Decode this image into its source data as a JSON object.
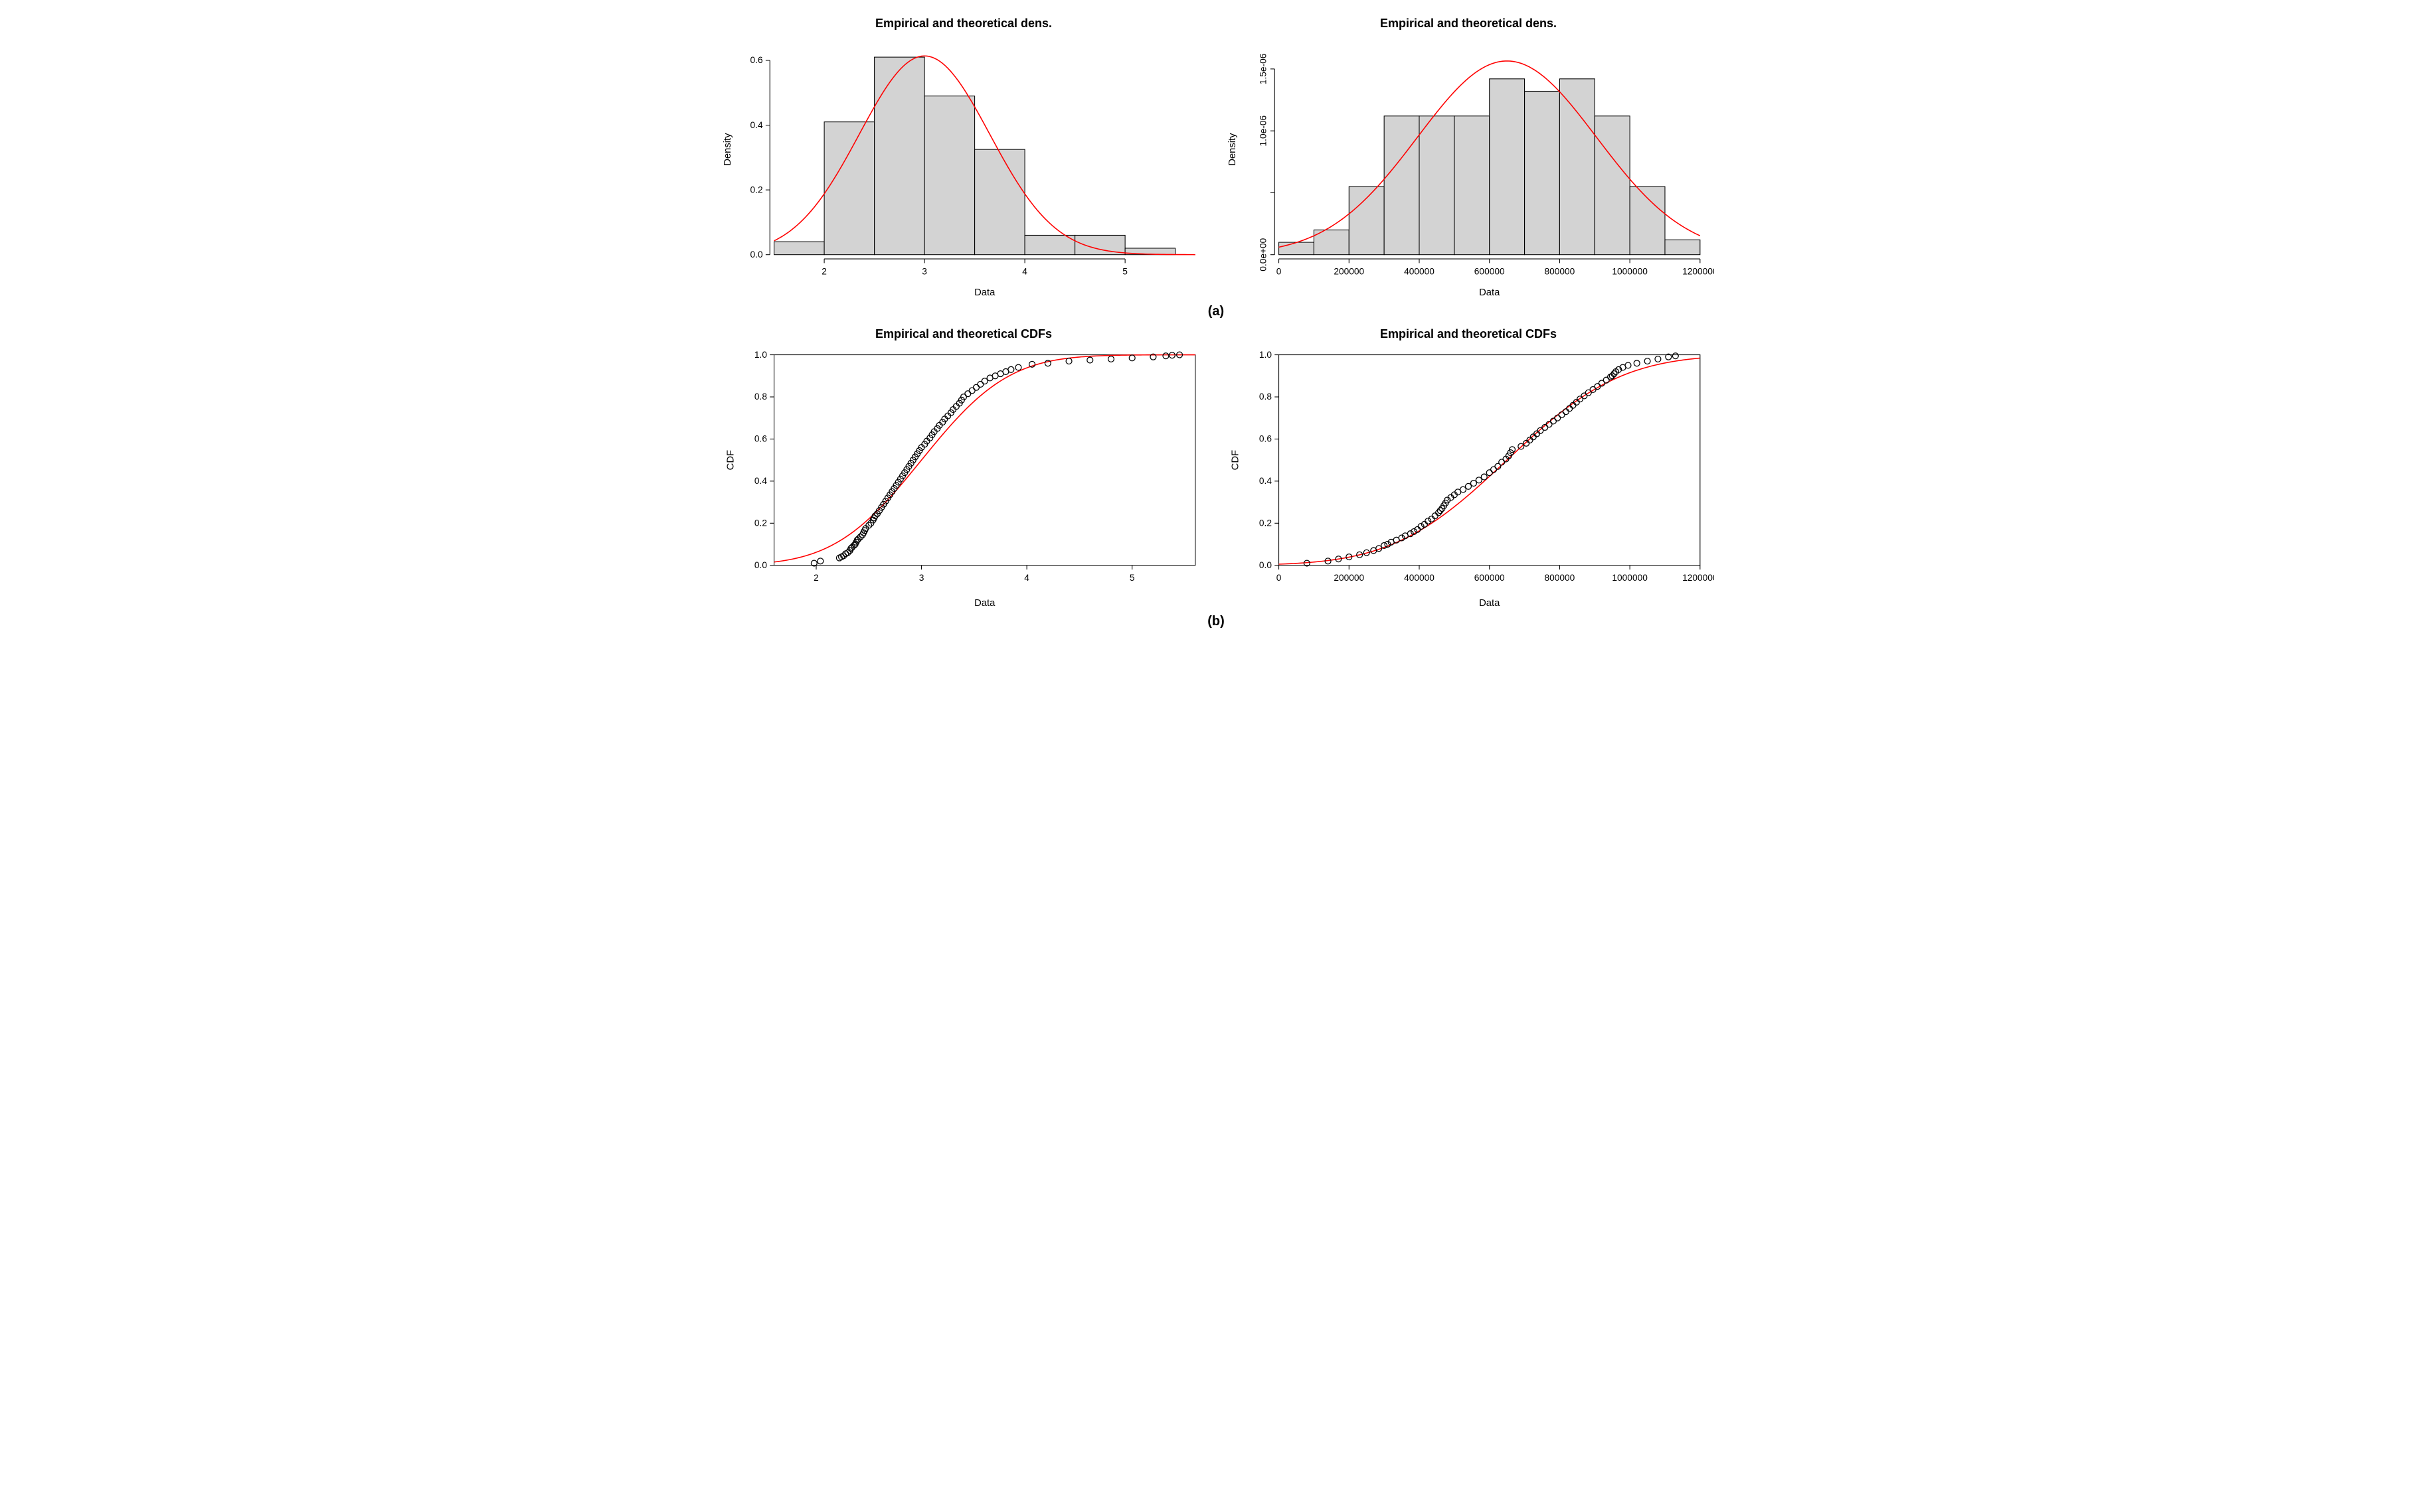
{
  "subplot_labels": {
    "a": "(a)",
    "b": "(b)"
  },
  "hist_left": {
    "type": "histogram",
    "title": "Empirical and theoretical dens.",
    "xlabel": "Data",
    "ylabel": "Density",
    "xlim": [
      1.5,
      5.7
    ],
    "ylim": [
      0,
      0.65
    ],
    "xticks": [
      2,
      3,
      4,
      5
    ],
    "yticks": [
      0.0,
      0.2,
      0.4,
      0.6
    ],
    "ytick_labels": [
      "0.0",
      "0.2",
      "0.4",
      "0.6"
    ],
    "bin_width": 0.5,
    "bins": [
      {
        "x": 1.5,
        "h": 0.04
      },
      {
        "x": 2.0,
        "h": 0.41
      },
      {
        "x": 2.5,
        "h": 0.61
      },
      {
        "x": 3.0,
        "h": 0.49
      },
      {
        "x": 3.5,
        "h": 0.325
      },
      {
        "x": 4.0,
        "h": 0.06
      },
      {
        "x": 4.5,
        "h": 0.06
      },
      {
        "x": 5.0,
        "h": 0.02
      }
    ],
    "curve": {
      "mu": 3.0,
      "sigma": 0.65,
      "scale": 1.0
    },
    "bar_fill": "#d3d3d3",
    "bar_stroke": "#000000",
    "line_color": "#ff0000",
    "background_color": "#ffffff",
    "title_fontsize": 18,
    "label_fontsize": 14
  },
  "hist_right": {
    "type": "histogram",
    "title": "Empirical and theoretical dens.",
    "xlabel": "Data",
    "ylabel": "Density",
    "xlim": [
      0,
      1200000
    ],
    "ylim": [
      0,
      1.7e-06
    ],
    "xticks": [
      0,
      200000,
      400000,
      600000,
      800000,
      1000000,
      1200000
    ],
    "yticks": [
      0,
      5e-07,
      1e-06,
      1.5e-06
    ],
    "ytick_labels": [
      "0.0e+00",
      "",
      "1.0e-06",
      "1.5e-06"
    ],
    "bin_width": 100000,
    "bins": [
      {
        "x": 0,
        "h": 1e-07
      },
      {
        "x": 100000,
        "h": 2e-07
      },
      {
        "x": 200000,
        "h": 5.5e-07
      },
      {
        "x": 300000,
        "h": 1.12e-06
      },
      {
        "x": 400000,
        "h": 1.12e-06
      },
      {
        "x": 500000,
        "h": 1.12e-06
      },
      {
        "x": 600000,
        "h": 1.42e-06
      },
      {
        "x": 700000,
        "h": 1.32e-06
      },
      {
        "x": 800000,
        "h": 1.42e-06
      },
      {
        "x": 900000,
        "h": 1.12e-06
      },
      {
        "x": 1000000,
        "h": 5.5e-07
      },
      {
        "x": 1100000,
        "h": 1.2e-07
      }
    ],
    "curve": {
      "mu": 650000,
      "sigma": 255000,
      "scale": 1.0
    },
    "bar_fill": "#d3d3d3",
    "bar_stroke": "#000000",
    "line_color": "#ff0000",
    "background_color": "#ffffff",
    "title_fontsize": 18,
    "label_fontsize": 14
  },
  "cdf_left": {
    "type": "cdf",
    "title": "Empirical and theoretical CDFs",
    "xlabel": "Data",
    "ylabel": "CDF",
    "xlim": [
      1.6,
      5.6
    ],
    "ylim": [
      0,
      1.0
    ],
    "xticks": [
      2,
      3,
      4,
      5
    ],
    "yticks": [
      0.0,
      0.2,
      0.4,
      0.6,
      0.8,
      1.0
    ],
    "ytick_labels": [
      "0.0",
      "0.2",
      "0.4",
      "0.6",
      "0.8",
      "1.0"
    ],
    "line_color": "#ff0000",
    "point_stroke": "#000000",
    "marker": "circle",
    "marker_size": 4.2,
    "curve": {
      "mu": 3.0,
      "sigma": 0.65
    },
    "points": [
      [
        1.98,
        0.01
      ],
      [
        2.04,
        0.02
      ],
      [
        2.22,
        0.035
      ],
      [
        2.24,
        0.04
      ],
      [
        2.26,
        0.045
      ],
      [
        2.28,
        0.055
      ],
      [
        2.3,
        0.06
      ],
      [
        2.32,
        0.07
      ],
      [
        2.33,
        0.08
      ],
      [
        2.34,
        0.085
      ],
      [
        2.36,
        0.095
      ],
      [
        2.37,
        0.1
      ],
      [
        2.38,
        0.11
      ],
      [
        2.39,
        0.12
      ],
      [
        2.4,
        0.125
      ],
      [
        2.42,
        0.135
      ],
      [
        2.44,
        0.145
      ],
      [
        2.45,
        0.155
      ],
      [
        2.46,
        0.165
      ],
      [
        2.47,
        0.175
      ],
      [
        2.5,
        0.19
      ],
      [
        2.52,
        0.2
      ],
      [
        2.54,
        0.215
      ],
      [
        2.55,
        0.225
      ],
      [
        2.56,
        0.235
      ],
      [
        2.58,
        0.245
      ],
      [
        2.6,
        0.26
      ],
      [
        2.62,
        0.275
      ],
      [
        2.64,
        0.29
      ],
      [
        2.66,
        0.305
      ],
      [
        2.68,
        0.32
      ],
      [
        2.7,
        0.335
      ],
      [
        2.72,
        0.35
      ],
      [
        2.74,
        0.365
      ],
      [
        2.76,
        0.38
      ],
      [
        2.78,
        0.395
      ],
      [
        2.8,
        0.41
      ],
      [
        2.82,
        0.425
      ],
      [
        2.84,
        0.44
      ],
      [
        2.86,
        0.455
      ],
      [
        2.88,
        0.47
      ],
      [
        2.9,
        0.485
      ],
      [
        2.92,
        0.5
      ],
      [
        2.94,
        0.515
      ],
      [
        2.96,
        0.53
      ],
      [
        2.98,
        0.545
      ],
      [
        3.0,
        0.56
      ],
      [
        3.03,
        0.575
      ],
      [
        3.05,
        0.59
      ],
      [
        3.08,
        0.605
      ],
      [
        3.1,
        0.62
      ],
      [
        3.12,
        0.635
      ],
      [
        3.15,
        0.65
      ],
      [
        3.17,
        0.665
      ],
      [
        3.2,
        0.68
      ],
      [
        3.22,
        0.695
      ],
      [
        3.25,
        0.71
      ],
      [
        3.28,
        0.725
      ],
      [
        3.3,
        0.74
      ],
      [
        3.33,
        0.755
      ],
      [
        3.36,
        0.77
      ],
      [
        3.38,
        0.785
      ],
      [
        3.4,
        0.8
      ],
      [
        3.44,
        0.815
      ],
      [
        3.48,
        0.83
      ],
      [
        3.52,
        0.845
      ],
      [
        3.56,
        0.86
      ],
      [
        3.6,
        0.875
      ],
      [
        3.65,
        0.89
      ],
      [
        3.7,
        0.9
      ],
      [
        3.75,
        0.91
      ],
      [
        3.8,
        0.92
      ],
      [
        3.85,
        0.93
      ],
      [
        3.92,
        0.94
      ],
      [
        4.05,
        0.955
      ],
      [
        4.2,
        0.96
      ],
      [
        4.4,
        0.97
      ],
      [
        4.6,
        0.975
      ],
      [
        4.8,
        0.98
      ],
      [
        5.0,
        0.985
      ],
      [
        5.2,
        0.99
      ],
      [
        5.32,
        0.995
      ],
      [
        5.38,
        0.998
      ],
      [
        5.45,
        1.0
      ]
    ],
    "background_color": "#ffffff",
    "title_fontsize": 18,
    "label_fontsize": 14
  },
  "cdf_right": {
    "type": "cdf",
    "title": "Empirical and theoretical CDFs",
    "xlabel": "Data",
    "ylabel": "CDF",
    "xlim": [
      0,
      1200000
    ],
    "ylim": [
      0,
      1.0
    ],
    "xticks": [
      0,
      200000,
      400000,
      600000,
      800000,
      1000000,
      1200000
    ],
    "yticks": [
      0.0,
      0.2,
      0.4,
      0.6,
      0.8,
      1.0
    ],
    "ytick_labels": [
      "0.0",
      "0.2",
      "0.4",
      "0.6",
      "0.8",
      "1.0"
    ],
    "line_color": "#ff0000",
    "point_stroke": "#000000",
    "marker": "circle",
    "marker_size": 4.2,
    "curve": {
      "mu": 650000,
      "sigma": 255000
    },
    "points": [
      [
        80000,
        0.01
      ],
      [
        140000,
        0.02
      ],
      [
        170000,
        0.03
      ],
      [
        200000,
        0.04
      ],
      [
        230000,
        0.05
      ],
      [
        250000,
        0.06
      ],
      [
        270000,
        0.07
      ],
      [
        285000,
        0.08
      ],
      [
        300000,
        0.094
      ],
      [
        310000,
        0.1
      ],
      [
        320000,
        0.11
      ],
      [
        335000,
        0.12
      ],
      [
        350000,
        0.13
      ],
      [
        360000,
        0.14
      ],
      [
        375000,
        0.15
      ],
      [
        385000,
        0.16
      ],
      [
        395000,
        0.17
      ],
      [
        405000,
        0.185
      ],
      [
        415000,
        0.195
      ],
      [
        425000,
        0.21
      ],
      [
        435000,
        0.22
      ],
      [
        445000,
        0.235
      ],
      [
        455000,
        0.25
      ],
      [
        460000,
        0.26
      ],
      [
        465000,
        0.27
      ],
      [
        470000,
        0.283
      ],
      [
        475000,
        0.296
      ],
      [
        480000,
        0.31
      ],
      [
        490000,
        0.322
      ],
      [
        500000,
        0.335
      ],
      [
        510000,
        0.348
      ],
      [
        525000,
        0.36
      ],
      [
        540000,
        0.375
      ],
      [
        555000,
        0.39
      ],
      [
        570000,
        0.405
      ],
      [
        585000,
        0.42
      ],
      [
        600000,
        0.44
      ],
      [
        612000,
        0.455
      ],
      [
        624000,
        0.47
      ],
      [
        635000,
        0.49
      ],
      [
        647000,
        0.505
      ],
      [
        655000,
        0.52
      ],
      [
        660000,
        0.535
      ],
      [
        665000,
        0.55
      ],
      [
        690000,
        0.565
      ],
      [
        705000,
        0.58
      ],
      [
        715000,
        0.595
      ],
      [
        725000,
        0.61
      ],
      [
        735000,
        0.625
      ],
      [
        745000,
        0.64
      ],
      [
        758000,
        0.655
      ],
      [
        770000,
        0.67
      ],
      [
        782000,
        0.685
      ],
      [
        794000,
        0.7
      ],
      [
        806000,
        0.715
      ],
      [
        818000,
        0.73
      ],
      [
        828000,
        0.745
      ],
      [
        838000,
        0.76
      ],
      [
        848000,
        0.775
      ],
      [
        858000,
        0.79
      ],
      [
        870000,
        0.805
      ],
      [
        882000,
        0.82
      ],
      [
        895000,
        0.835
      ],
      [
        908000,
        0.85
      ],
      [
        920000,
        0.865
      ],
      [
        933000,
        0.88
      ],
      [
        945000,
        0.895
      ],
      [
        950000,
        0.9
      ],
      [
        955000,
        0.91
      ],
      [
        960000,
        0.92
      ],
      [
        968000,
        0.93
      ],
      [
        980000,
        0.94
      ],
      [
        995000,
        0.95
      ],
      [
        1020000,
        0.96
      ],
      [
        1050000,
        0.97
      ],
      [
        1080000,
        0.98
      ],
      [
        1110000,
        0.99
      ],
      [
        1130000,
        0.995
      ]
    ],
    "background_color": "#ffffff",
    "title_fontsize": 18,
    "label_fontsize": 14
  }
}
